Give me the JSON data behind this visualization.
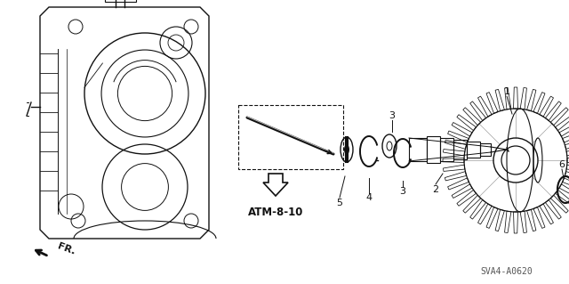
{
  "bg_color": "#ffffff",
  "line_color": "#111111",
  "part_label": "ATM-8-10",
  "diagram_code": "SVA4-A0620",
  "fr_label": "FR.",
  "figsize": [
    6.4,
    3.19
  ],
  "dpi": 100,
  "xlim": [
    0,
    640
  ],
  "ylim": [
    0,
    319
  ]
}
